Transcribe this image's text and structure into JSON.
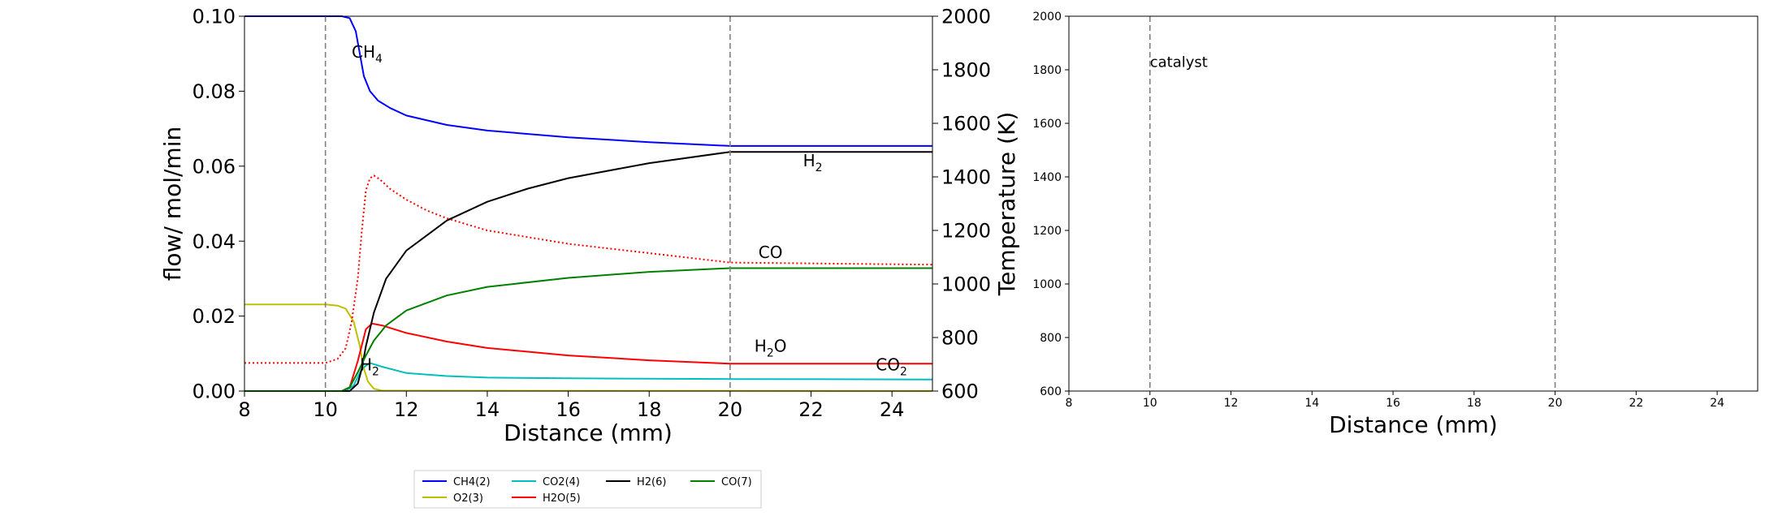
{
  "chart_data": [
    {
      "type": "line",
      "xlabel": "Distance (mm)",
      "ylabel": "flow/ mol/min",
      "y2label": "Temperature (K)",
      "xlim": [
        8,
        25
      ],
      "ylim": [
        0,
        0.1
      ],
      "y2lim": [
        600,
        2000
      ],
      "xticks": [
        "8",
        "10",
        "12",
        "14",
        "16",
        "18",
        "20",
        "22",
        "24"
      ],
      "yticks": [
        "0.00",
        "0.02",
        "0.04",
        "0.06",
        "0.08",
        "0.10"
      ],
      "y2ticks": [
        "600",
        "800",
        "1000",
        "1200",
        "1400",
        "1600",
        "1800",
        "2000"
      ],
      "vlines": [
        10,
        20
      ],
      "grid": false,
      "series": [
        {
          "key": "ch4",
          "color": "#0000ff",
          "dash": false,
          "x": [
            8,
            10.4,
            10.6,
            10.75,
            10.85,
            10.95,
            11.1,
            11.3,
            11.6,
            12,
            13,
            14,
            16,
            18,
            20,
            25
          ],
          "y": [
            0.1,
            0.1,
            0.0995,
            0.096,
            0.09,
            0.084,
            0.08,
            0.0775,
            0.0755,
            0.0735,
            0.071,
            0.0695,
            0.0677,
            0.0664,
            0.0654,
            0.0654
          ]
        },
        {
          "key": "o2",
          "color": "#bfbf00",
          "dash": false,
          "x": [
            8,
            10,
            10.3,
            10.5,
            10.7,
            10.85,
            10.95,
            11.05,
            11.2,
            11.4,
            25
          ],
          "y": [
            0.0231,
            0.0231,
            0.0228,
            0.022,
            0.0185,
            0.012,
            0.006,
            0.0025,
            0.0006,
            0.0001,
            0
          ],
          "end": [
            25,
            0.0001
          ]
        },
        {
          "key": "co2",
          "color": "#00bfbf",
          "dash": false,
          "x": [
            8,
            10.5,
            10.7,
            10.9,
            11.1,
            11.4,
            12,
            13,
            14,
            16,
            20,
            25
          ],
          "y": [
            0,
            0,
            0.0015,
            0.006,
            0.0075,
            0.0065,
            0.0048,
            0.004,
            0.0036,
            0.0034,
            0.0032,
            0.0031
          ]
        },
        {
          "key": "h2o",
          "color": "#ff0000",
          "dash": false,
          "x": [
            8,
            10.4,
            10.6,
            10.8,
            11,
            11.15,
            11.4,
            12,
            13,
            14,
            16,
            18,
            20,
            25
          ],
          "y": [
            0,
            0,
            0.001,
            0.008,
            0.0165,
            0.018,
            0.0175,
            0.0155,
            0.0132,
            0.0115,
            0.0095,
            0.0082,
            0.0073,
            0.0073
          ]
        },
        {
          "key": "h2",
          "color": "#000000",
          "dash": false,
          "x": [
            8,
            10.6,
            10.8,
            10.9,
            11,
            11.2,
            11.5,
            12,
            13,
            14,
            15,
            16,
            18,
            20,
            25
          ],
          "y": [
            0,
            0,
            0.002,
            0.006,
            0.012,
            0.021,
            0.03,
            0.0375,
            0.0455,
            0.0505,
            0.054,
            0.0568,
            0.0608,
            0.0638,
            0.0638
          ]
        },
        {
          "key": "co",
          "color": "#008000",
          "dash": false,
          "x": [
            8,
            10.4,
            10.6,
            10.8,
            11,
            11.2,
            11.5,
            12,
            13,
            14,
            16,
            18,
            20,
            25
          ],
          "y": [
            0,
            0,
            0.001,
            0.005,
            0.0095,
            0.0135,
            0.0175,
            0.0215,
            0.0255,
            0.0278,
            0.0302,
            0.0318,
            0.0328,
            0.0328
          ]
        },
        {
          "key": "temp",
          "color": "#ff0000",
          "dash": true,
          "axis": "y2",
          "x": [
            8,
            10,
            10.3,
            10.5,
            10.65,
            10.8,
            10.9,
            11,
            11.1,
            11.2,
            11.35,
            11.6,
            12,
            12.5,
            13,
            14,
            16,
            18,
            20,
            25
          ],
          "y": [
            705,
            705,
            720,
            760,
            860,
            1020,
            1200,
            1350,
            1395,
            1405,
            1390,
            1355,
            1315,
            1275,
            1245,
            1200,
            1150,
            1115,
            1080,
            1072
          ]
        }
      ],
      "annotations": [
        {
          "text": "CH",
          "sub": "4",
          "x": 10.65,
          "y": 0.089,
          "color": "#0000ff"
        },
        {
          "text": "H",
          "sub": "2",
          "x": 21.8,
          "y": 0.06,
          "color": "#000000"
        },
        {
          "text": "CO",
          "sub": "",
          "x": 20.7,
          "y": 0.0355,
          "color": "#008000"
        },
        {
          "text": "H",
          "sub": "2",
          "x": 10.85,
          "y": 0.0055,
          "color": "#bfbf00",
          "trail": ""
        },
        {
          "text": "H",
          "sub": "2",
          "x": 20.6,
          "y": 0.0105,
          "color": "#ff0000",
          "trail": "O"
        },
        {
          "text": "CO",
          "sub": "2",
          "x": 23.6,
          "y": 0.0055,
          "color": "#00bfbf"
        }
      ]
    },
    {
      "type": "line",
      "xlabel": "Distance (mm)",
      "xlim": [
        8,
        25
      ],
      "ylim": [
        600,
        2000
      ],
      "xticks": [
        "8",
        "10",
        "12",
        "14",
        "16",
        "18",
        "20",
        "22",
        "24"
      ],
      "yticks": [
        "600",
        "800",
        "1000",
        "1200",
        "1400",
        "1600",
        "1800",
        "2000"
      ],
      "vlines": [
        10,
        20
      ],
      "grid": false,
      "series": [],
      "annotations": [
        {
          "text": "catalyst",
          "x": 10,
          "y": 1810
        }
      ]
    }
  ],
  "legend": {
    "placement": "bottom-center",
    "items": [
      {
        "label": "CH4(2)",
        "color": "#0000ff"
      },
      {
        "label": "CO2(4)",
        "color": "#00bfbf"
      },
      {
        "label": "H2(6)",
        "color": "#000000"
      },
      {
        "label": "CO(7)",
        "color": "#008000"
      },
      {
        "label": "O2(3)",
        "color": "#bfbf00"
      },
      {
        "label": "H2O(5)",
        "color": "#ff0000"
      }
    ]
  }
}
